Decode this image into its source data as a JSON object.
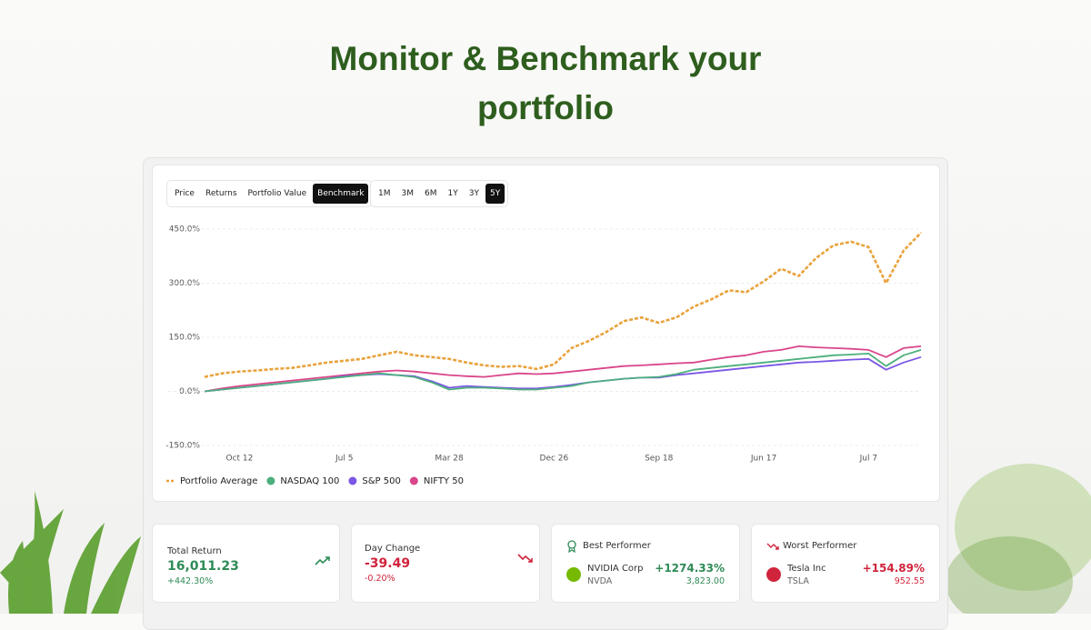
{
  "header": {
    "title": "Monitor & Benchmark your portfolio"
  },
  "view_tabs": [
    "Price",
    "Returns",
    "Portfolio Value",
    "Benchmark"
  ],
  "active_view_tab": 3,
  "period_tabs": [
    "1M",
    "3M",
    "6M",
    "1Y",
    "3Y",
    "5Y"
  ],
  "active_period_tab": 5,
  "chart_data": {
    "type": "line",
    "categories": [
      null,
      null,
      "Oct 12",
      null,
      null,
      null,
      null,
      null,
      "Jul 5",
      null,
      null,
      null,
      null,
      null,
      "Mar 28",
      null,
      null,
      null,
      null,
      null,
      "Dec 26",
      null,
      null,
      null,
      null,
      null,
      "Sep 18",
      null,
      null,
      null,
      null,
      null,
      "Jun 17",
      null,
      null,
      null,
      null,
      null,
      "Jul 7",
      null,
      null,
      null
    ],
    "ylim": [
      -150,
      450
    ],
    "yticks": [
      {
        "value": -150,
        "label": "-150.0%"
      },
      {
        "value": 0,
        "label": "0.0%"
      },
      {
        "value": 150,
        "label": "150.0%"
      },
      {
        "value": 300,
        "label": "300.0%"
      },
      {
        "value": 450,
        "label": "450.0%"
      }
    ],
    "grid": true,
    "legend": "bottom-left",
    "series": [
      {
        "name": "Portfolio Average",
        "color": "#e9a23b",
        "dashed": true,
        "values": [
          40,
          50,
          55,
          58,
          62,
          65,
          72,
          80,
          85,
          90,
          100,
          110,
          100,
          95,
          90,
          80,
          72,
          68,
          70,
          62,
          75,
          120,
          140,
          165,
          195,
          205,
          190,
          205,
          235,
          255,
          280,
          275,
          305,
          340,
          320,
          370,
          405,
          415,
          400,
          300,
          390,
          440
        ]
      },
      {
        "name": "NASDAQ 100",
        "color": "#4caf7d",
        "dashed": false,
        "values": [
          0,
          5,
          10,
          15,
          20,
          25,
          30,
          35,
          40,
          45,
          50,
          45,
          40,
          25,
          5,
          10,
          10,
          8,
          5,
          5,
          10,
          15,
          25,
          30,
          35,
          38,
          40,
          48,
          60,
          65,
          70,
          75,
          80,
          85,
          90,
          95,
          100,
          102,
          105,
          70,
          100,
          115
        ]
      },
      {
        "name": "S&P 500",
        "color": "#7b57e4",
        "dashed": false,
        "values": [
          0,
          5,
          10,
          15,
          20,
          25,
          30,
          35,
          42,
          45,
          48,
          45,
          42,
          28,
          10,
          15,
          12,
          10,
          8,
          8,
          12,
          18,
          25,
          30,
          35,
          38,
          38,
          45,
          50,
          55,
          60,
          65,
          70,
          75,
          80,
          82,
          85,
          88,
          90,
          60,
          80,
          95
        ]
      },
      {
        "name": "NIFTY 50",
        "color": "#d9468a",
        "dashed": false,
        "values": [
          0,
          8,
          15,
          20,
          25,
          30,
          35,
          40,
          45,
          50,
          55,
          58,
          55,
          50,
          45,
          42,
          40,
          45,
          50,
          48,
          50,
          55,
          60,
          65,
          70,
          72,
          75,
          78,
          80,
          88,
          95,
          100,
          110,
          115,
          125,
          122,
          120,
          118,
          115,
          95,
          120,
          125
        ]
      }
    ]
  },
  "stats": {
    "total_return": {
      "label": "Total Return",
      "value": "16,011.23",
      "change": "+442.30%"
    },
    "day_change": {
      "label": "Day Change",
      "value": "-39.49",
      "change": "-0.20%"
    },
    "best_performer": {
      "label": "Best Performer",
      "name": "NVIDIA Corp",
      "ticker": "NVDA",
      "change": "+1274.33%",
      "price": "3,823.00"
    },
    "worst_performer": {
      "label": "Worst Performer",
      "name": "Tesla Inc",
      "ticker": "TSLA",
      "change": "+154.89%",
      "price": "952.55"
    }
  }
}
